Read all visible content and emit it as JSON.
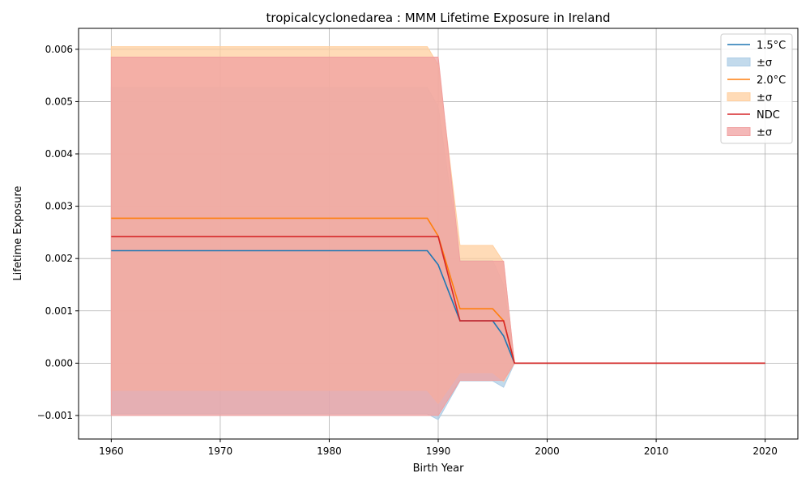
{
  "chart_data": {
    "type": "line",
    "title": "tropicalcyclonedarea : MMM Lifetime Exposure in Ireland",
    "xlabel": "Birth Year",
    "ylabel": "Lifetime Exposure",
    "xlim": [
      1957,
      2023
    ],
    "ylim": [
      -0.00145,
      0.0064
    ],
    "xticks": [
      1960,
      1970,
      1980,
      1990,
      2000,
      2010,
      2020
    ],
    "xtick_labels": [
      "1960",
      "1970",
      "1980",
      "1990",
      "2000",
      "2010",
      "2020"
    ],
    "yticks": [
      -0.001,
      0.0,
      0.001,
      0.002,
      0.003,
      0.004,
      0.005,
      0.006
    ],
    "ytick_labels": [
      "−0.001",
      "0.000",
      "0.001",
      "0.002",
      "0.003",
      "0.004",
      "0.005",
      "0.006"
    ],
    "grid": true,
    "legend_position": "top-right",
    "x": [
      1960,
      1989,
      1990,
      1992,
      1995,
      1996,
      1997,
      2020
    ],
    "series": [
      {
        "name": "1.5°C",
        "band_label": "±σ",
        "color": "#1f77b4",
        "band_color": "#aecde6",
        "mean": [
          0.00215,
          0.00215,
          0.00188,
          0.00081,
          0.00081,
          0.00052,
          0.0,
          0.0
        ],
        "upper": [
          0.00527,
          0.00527,
          0.0049,
          0.00196,
          0.00196,
          0.0015,
          0.0,
          0.0
        ],
        "lower": [
          -0.00097,
          -0.00097,
          -0.00108,
          -0.00034,
          -0.00034,
          -0.00046,
          0.0,
          0.0
        ]
      },
      {
        "name": "2.0°C",
        "band_label": "±σ",
        "color": "#ff7f0e",
        "band_color": "#ffcf9f",
        "mean": [
          0.00277,
          0.00277,
          0.00243,
          0.00104,
          0.00104,
          0.00081,
          0.0,
          0.0
        ],
        "upper": [
          0.00605,
          0.00605,
          0.0057,
          0.00225,
          0.00225,
          0.00193,
          0.0,
          0.0
        ],
        "lower": [
          -0.00052,
          -0.00052,
          -0.00077,
          -0.00018,
          -0.00018,
          -0.00035,
          0.0,
          0.0
        ]
      },
      {
        "name": "NDC",
        "band_label": "±σ",
        "color": "#d62728",
        "band_color": "#f0a0a0",
        "mean": [
          0.00242,
          0.00242,
          0.00242,
          0.00081,
          0.00081,
          0.00081,
          0.0,
          0.0
        ],
        "upper": [
          0.00585,
          0.00585,
          0.00585,
          0.00195,
          0.00195,
          0.00195,
          0.0,
          0.0
        ],
        "lower": [
          -0.001,
          -0.001,
          -0.001,
          -0.00033,
          -0.00033,
          -0.00033,
          0.0,
          0.0
        ]
      }
    ]
  }
}
